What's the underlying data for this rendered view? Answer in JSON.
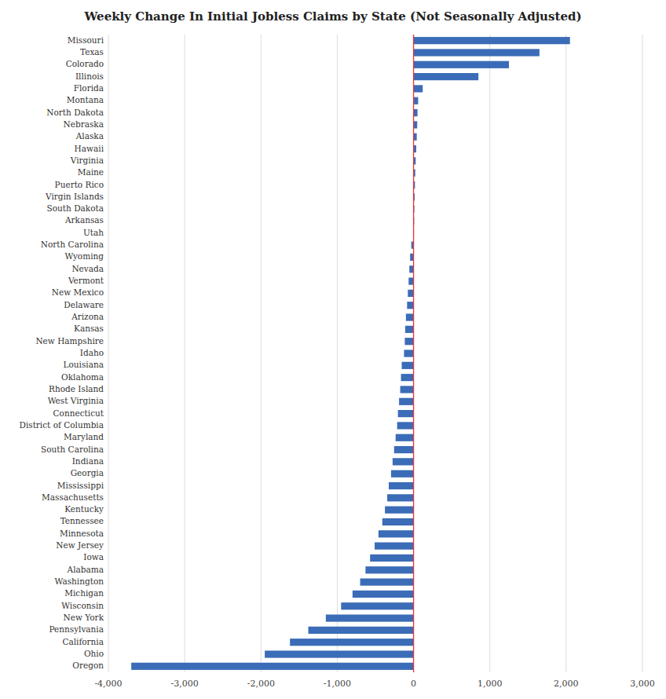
{
  "chart_data": {
    "type": "bar",
    "orientation": "horizontal",
    "title": "Weekly Change In Initial Jobless Claims by State (Not Seasonally Adjusted)",
    "categories": [
      "Missouri",
      "Texas",
      "Colorado",
      "Illinois",
      "Florida",
      "Montana",
      "North Dakota",
      "Nebraska",
      "Alaska",
      "Hawaii",
      "Virginia",
      "Maine",
      "Puerto Rico",
      "Virgin Islands",
      "South Dakota",
      "Arkansas",
      "Utah",
      "North Carolina",
      "Wyoming",
      "Nevada",
      "Vermont",
      "New Mexico",
      "Delaware",
      "Arizona",
      "Kansas",
      "New Hampshire",
      "Idaho",
      "Louisiana",
      "Oklahoma",
      "Rhode Island",
      "West Virginia",
      "Connecticut",
      "District of Columbia",
      "Maryland",
      "South Carolina",
      "Indiana",
      "Georgia",
      "Mississippi",
      "Massachusetts",
      "Kentucky",
      "Tennessee",
      "Minnesota",
      "New Jersey",
      "Iowa",
      "Alabama",
      "Washington",
      "Michigan",
      "Wisconsin",
      "New York",
      "Pennsylvania",
      "California",
      "Ohio",
      "Oregon"
    ],
    "values": [
      2050,
      1650,
      1250,
      850,
      120,
      60,
      52,
      48,
      42,
      35,
      28,
      22,
      18,
      14,
      10,
      8,
      5,
      -30,
      -45,
      -55,
      -65,
      -75,
      -85,
      -100,
      -110,
      -115,
      -125,
      -155,
      -165,
      -175,
      -190,
      -205,
      -215,
      -235,
      -255,
      -275,
      -295,
      -325,
      -345,
      -375,
      -410,
      -460,
      -510,
      -570,
      -630,
      -700,
      -800,
      -950,
      -1150,
      -1380,
      -1620,
      -1950,
      -3700
    ],
    "color": "#3B6CB7",
    "xlim": [
      -4000,
      3000
    ],
    "xticks": [
      {
        "value": -4000,
        "label": "-4,000"
      },
      {
        "value": -3000,
        "label": "-3,000"
      },
      {
        "value": -2000,
        "label": "-2,000"
      },
      {
        "value": -1000,
        "label": "-1,000"
      },
      0,
      {
        "value": 1000,
        "label": "1,000"
      },
      {
        "value": 2000,
        "label": "2,000"
      },
      {
        "value": 3000,
        "label": "3,000"
      }
    ],
    "grid": true
  }
}
